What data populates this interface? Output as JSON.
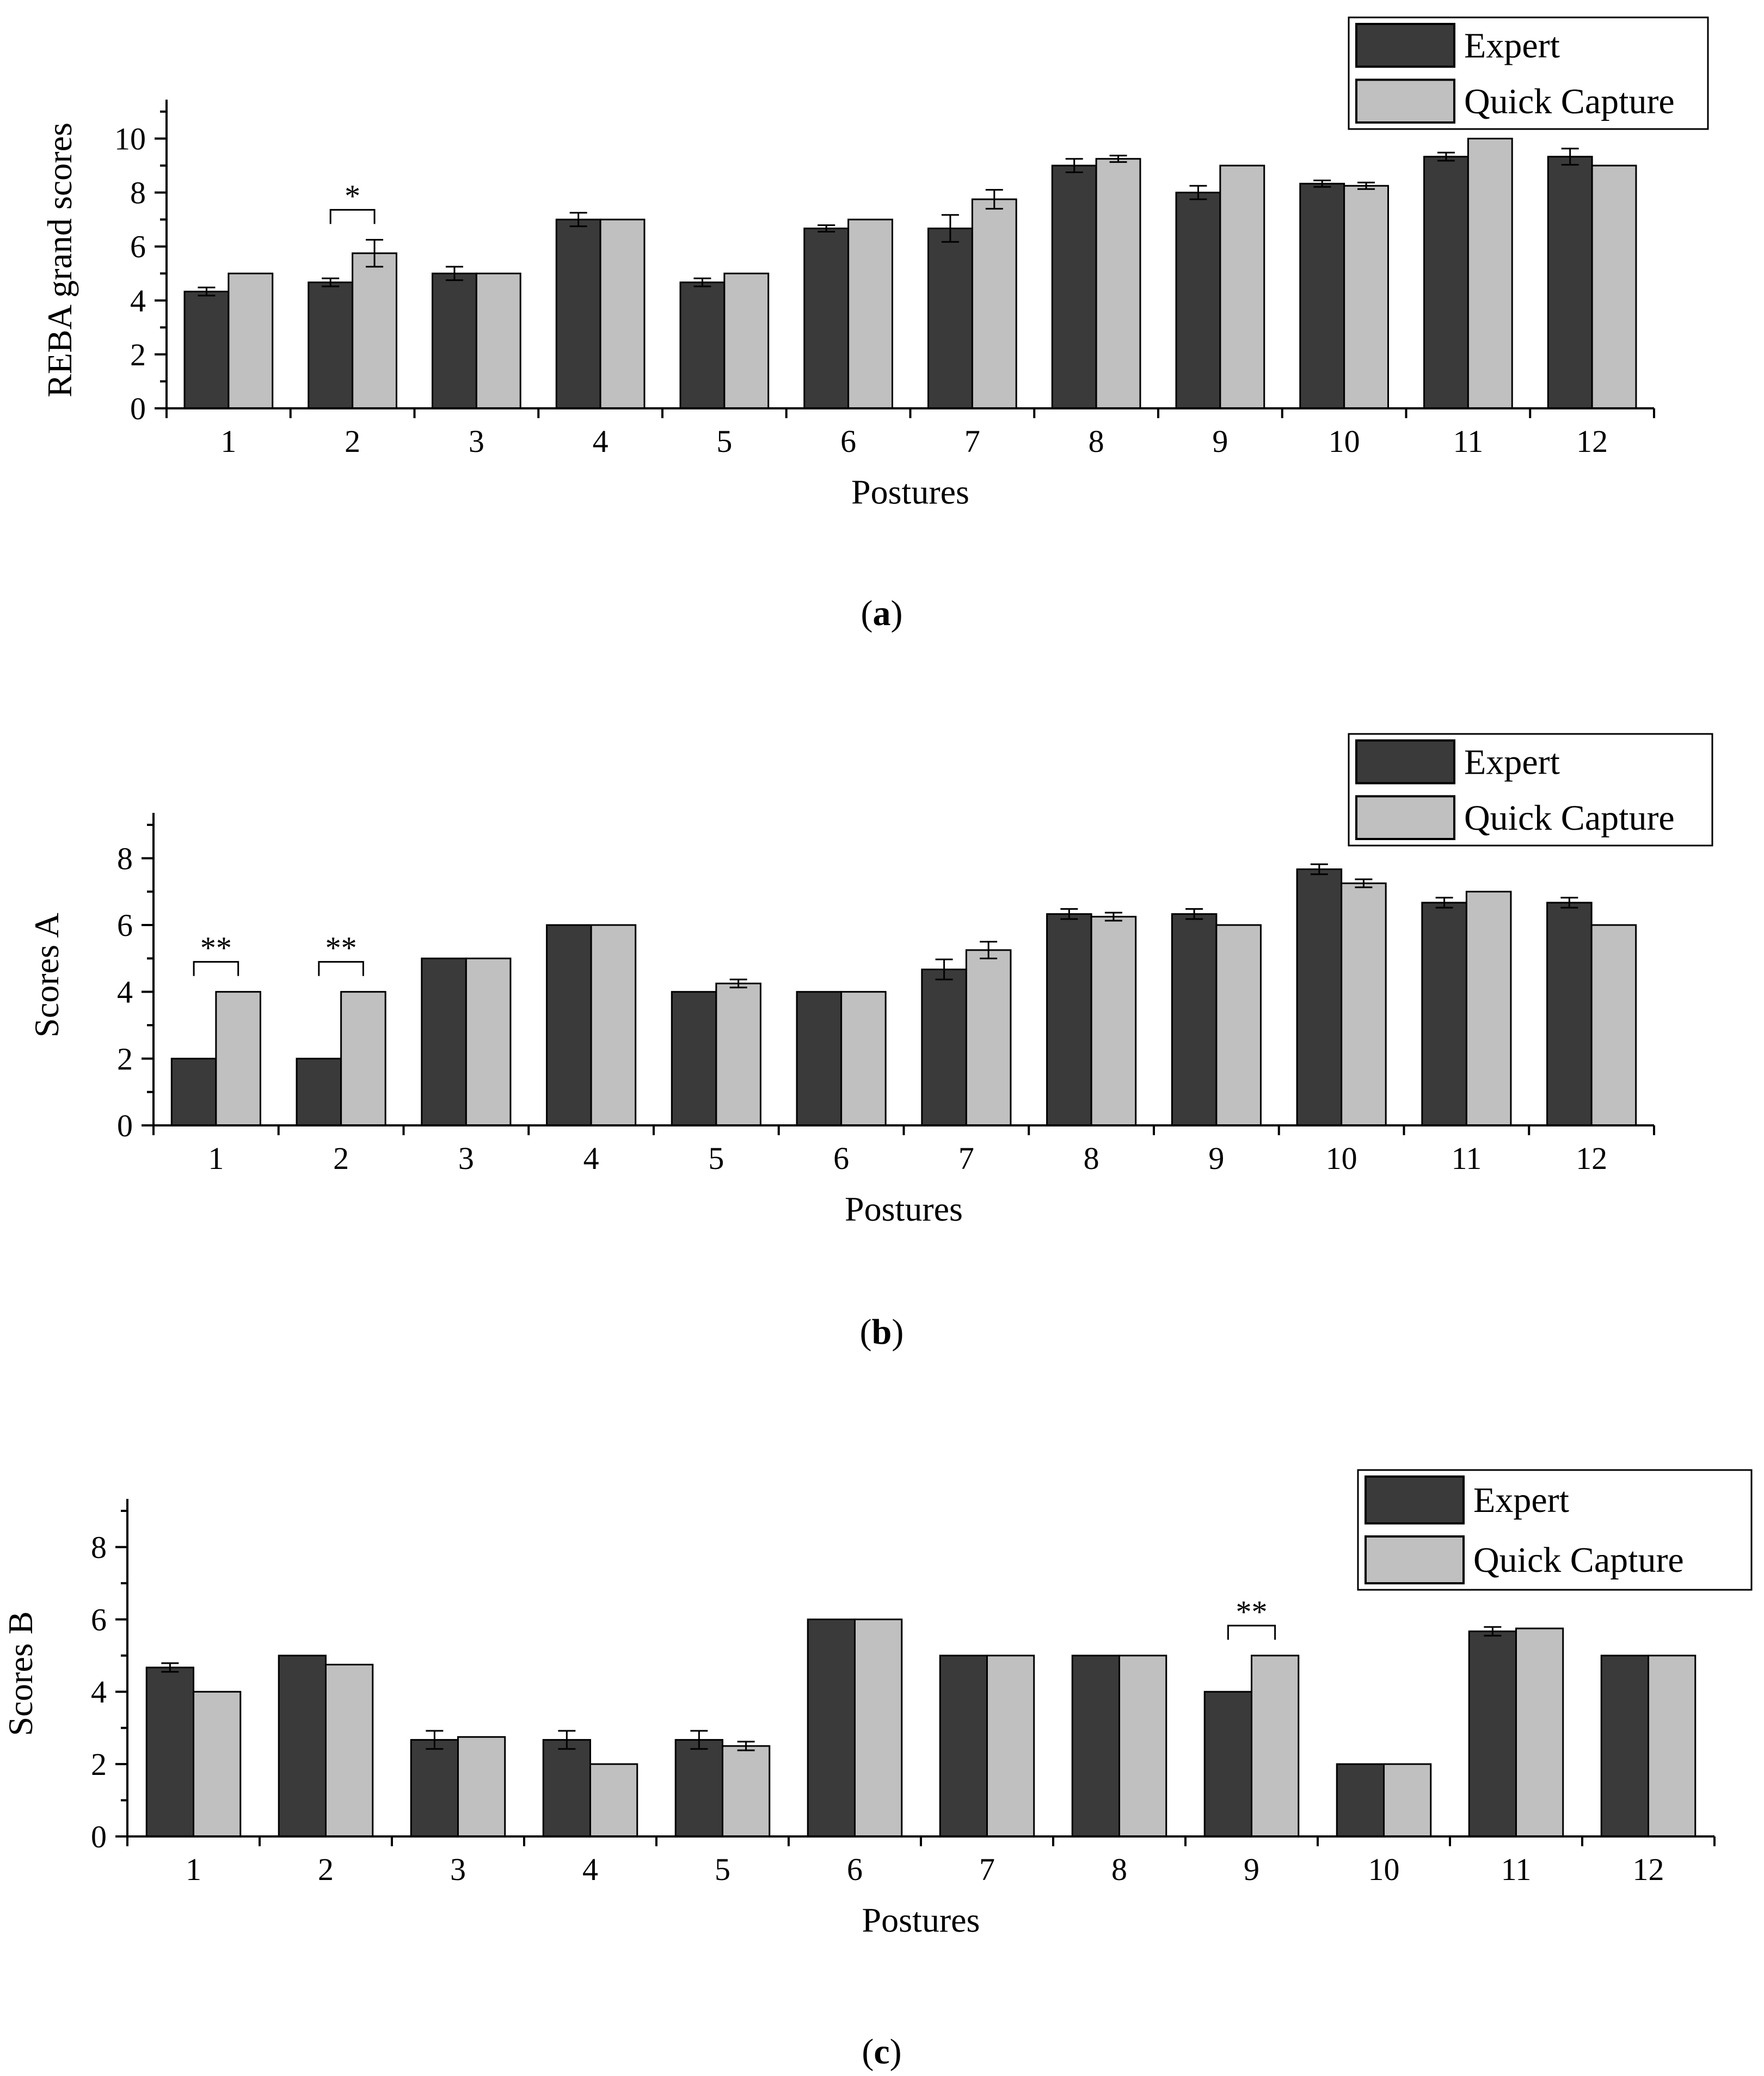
{
  "colors": {
    "expert": "#3a3a3a",
    "quick_capture": "#c0c0c0",
    "axis": "#000000",
    "background": "#ffffff"
  },
  "chart_data": [
    {
      "panel_label": "(a)",
      "panel_letter": "a",
      "type": "bar",
      "xlabel": "Postures",
      "ylabel": "REBA grand scores",
      "ylim": [
        0,
        11
      ],
      "yticks": [
        0,
        2,
        4,
        6,
        8,
        10
      ],
      "categories": [
        "1",
        "2",
        "3",
        "4",
        "5",
        "6",
        "7",
        "8",
        "9",
        "10",
        "11",
        "12"
      ],
      "legend_position": "top-right",
      "series": [
        {
          "name": "Expert",
          "values": [
            4.33,
            4.67,
            5.0,
            7.0,
            4.67,
            6.67,
            6.67,
            9.0,
            8.0,
            8.33,
            9.33,
            9.33
          ],
          "errors": [
            0.15,
            0.15,
            0.25,
            0.25,
            0.15,
            0.12,
            0.5,
            0.25,
            0.25,
            0.12,
            0.15,
            0.3
          ]
        },
        {
          "name": "Quick Capture",
          "values": [
            5.0,
            5.75,
            5.0,
            7.0,
            5.0,
            7.0,
            7.75,
            9.25,
            9.0,
            8.25,
            10.0,
            9.0
          ],
          "errors": [
            0,
            0.5,
            0,
            0,
            0,
            0,
            0.35,
            0.12,
            0,
            0.12,
            0,
            0
          ]
        }
      ],
      "annotations": [
        {
          "label": "*",
          "category_index": 1
        }
      ]
    },
    {
      "panel_label": "(b)",
      "panel_letter": "b",
      "type": "bar",
      "xlabel": "Postures",
      "ylabel": "Scores A",
      "ylim": [
        0,
        9
      ],
      "yticks": [
        0,
        2,
        4,
        6,
        8
      ],
      "categories": [
        "1",
        "2",
        "3",
        "4",
        "5",
        "6",
        "7",
        "8",
        "9",
        "10",
        "11",
        "12"
      ],
      "legend_position": "top-right",
      "series": [
        {
          "name": "Expert",
          "values": [
            2.0,
            2.0,
            5.0,
            6.0,
            4.0,
            4.0,
            4.67,
            6.33,
            6.33,
            7.67,
            6.67,
            6.67
          ],
          "errors": [
            0,
            0,
            0,
            0,
            0,
            0,
            0.3,
            0.15,
            0.15,
            0.15,
            0.15,
            0.15
          ]
        },
        {
          "name": "Quick Capture",
          "values": [
            4.0,
            4.0,
            5.0,
            6.0,
            4.25,
            4.0,
            5.25,
            6.25,
            6.0,
            7.25,
            7.0,
            6.0
          ],
          "errors": [
            0,
            0,
            0,
            0,
            0.12,
            0,
            0.25,
            0.12,
            0,
            0.12,
            0,
            0
          ]
        }
      ],
      "annotations": [
        {
          "label": "**",
          "category_index": 0
        },
        {
          "label": "**",
          "category_index": 1
        }
      ]
    },
    {
      "panel_label": "(c)",
      "panel_letter": "c",
      "type": "bar",
      "xlabel": "Postures",
      "ylabel": "Scores B",
      "ylim": [
        0,
        9
      ],
      "yticks": [
        0,
        2,
        4,
        6,
        8
      ],
      "categories": [
        "1",
        "2",
        "3",
        "4",
        "5",
        "6",
        "7",
        "8",
        "9",
        "10",
        "11",
        "12"
      ],
      "legend_position": "top-right",
      "series": [
        {
          "name": "Expert",
          "values": [
            4.67,
            5.0,
            2.67,
            2.67,
            2.67,
            6.0,
            5.0,
            5.0,
            4.0,
            2.0,
            5.67,
            5.0
          ],
          "errors": [
            0.12,
            0,
            0.25,
            0.25,
            0.25,
            0,
            0,
            0,
            0,
            0,
            0.12,
            0
          ]
        },
        {
          "name": "Quick Capture",
          "values": [
            4.0,
            4.75,
            2.75,
            2.0,
            2.5,
            6.0,
            5.0,
            5.0,
            5.0,
            2.0,
            5.75,
            5.0
          ],
          "errors": [
            0,
            0,
            0,
            0,
            0.12,
            0,
            0,
            0,
            0,
            0,
            0,
            0
          ]
        }
      ],
      "annotations": [
        {
          "label": "**",
          "category_index": 8
        }
      ]
    }
  ]
}
